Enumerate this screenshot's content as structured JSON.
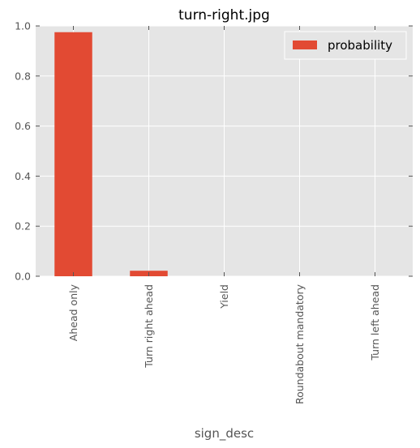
{
  "chart_data": {
    "type": "bar",
    "title": "turn-right.jpg",
    "xlabel": "sign_desc",
    "ylabel": "",
    "categories": [
      "Ahead only",
      "Turn right ahead",
      "Yield",
      "Roundabout mandatory",
      "Turn left ahead"
    ],
    "series": [
      {
        "name": "probability",
        "values": [
          0.975,
          0.022,
          0.0,
          0.0,
          0.0
        ],
        "color": "#E24A33"
      }
    ],
    "ylim": [
      0,
      1.0
    ],
    "yticks": [
      0.0,
      0.2,
      0.4,
      0.6,
      0.8,
      1.0
    ],
    "ytick_labels": [
      "0.0",
      "0.2",
      "0.4",
      "0.6",
      "0.8",
      "1.0"
    ],
    "grid": true,
    "legend_position": "top-right",
    "background_color": "#E5E5E5",
    "grid_color": "#FFFFFF"
  }
}
